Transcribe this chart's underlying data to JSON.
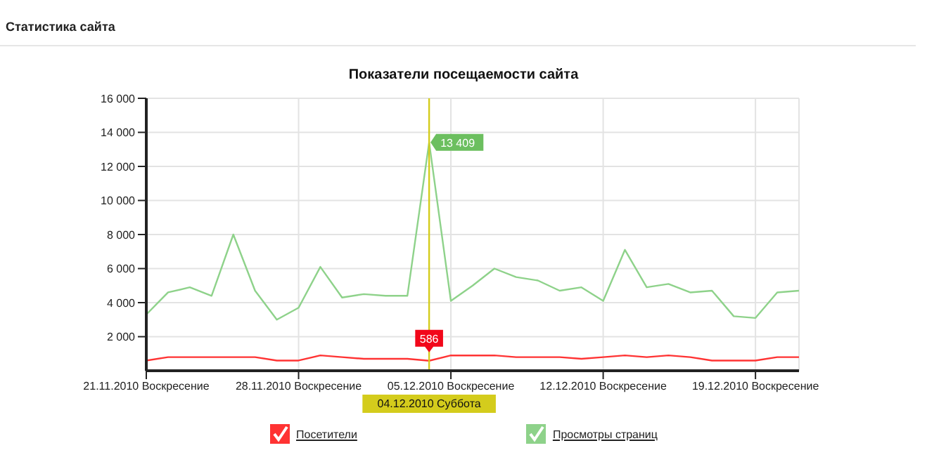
{
  "chart_data": {
    "type": "line",
    "title": "Показатели посещаемости сайта",
    "annotations": [
      "Статистика сайта"
    ],
    "x": [
      "2010-11-21",
      "2010-11-22",
      "2010-11-23",
      "2010-11-24",
      "2010-11-25",
      "2010-11-26",
      "2010-11-27",
      "2010-11-28",
      "2010-11-29",
      "2010-11-30",
      "2010-12-01",
      "2010-12-02",
      "2010-12-03",
      "2010-12-04",
      "2010-12-05",
      "2010-12-06",
      "2010-12-07",
      "2010-12-08",
      "2010-12-09",
      "2010-12-10",
      "2010-12-11",
      "2010-12-12",
      "2010-12-13",
      "2010-12-14",
      "2010-12-15",
      "2010-12-16",
      "2010-12-17",
      "2010-12-18",
      "2010-12-19",
      "2010-12-20",
      "2010-12-21"
    ],
    "series": [
      {
        "name": "Посетители",
        "color": "#ff3333",
        "values": [
          600,
          800,
          800,
          800,
          800,
          800,
          600,
          600,
          900,
          800,
          700,
          700,
          700,
          586,
          900,
          900,
          900,
          800,
          800,
          800,
          700,
          800,
          900,
          800,
          900,
          800,
          600,
          600,
          600,
          800,
          800
        ],
        "value_labels": [
          null,
          null,
          null,
          null,
          null,
          null,
          null,
          null,
          null,
          null,
          null,
          null,
          null,
          "586",
          null,
          null,
          null,
          null,
          null,
          null,
          null,
          null,
          null,
          null,
          null,
          null,
          null,
          null,
          null,
          null,
          null
        ]
      },
      {
        "name": "Просмотры страниц",
        "color": "#8ed28a",
        "values": [
          3300,
          4600,
          4900,
          4400,
          8000,
          4700,
          3000,
          3700,
          6100,
          4300,
          4500,
          4400,
          4400,
          13409,
          4100,
          5000,
          6000,
          5500,
          5300,
          4700,
          4900,
          4100,
          7100,
          4900,
          5100,
          4600,
          4700,
          3200,
          3100,
          4600,
          4700
        ],
        "value_labels": [
          null,
          null,
          null,
          null,
          null,
          null,
          null,
          null,
          null,
          null,
          null,
          null,
          null,
          "13 409",
          null,
          null,
          null,
          null,
          null,
          null,
          null,
          null,
          null,
          null,
          null,
          null,
          null,
          null,
          null,
          null,
          null
        ]
      }
    ],
    "xlim": [
      "2010-11-21",
      "2010-12-21"
    ],
    "xticks": [
      {
        "value": "2010-11-21",
        "label": "21.11.2010 Воскресение"
      },
      {
        "value": "2010-11-28",
        "label": "28.11.2010 Воскресение"
      },
      {
        "value": "2010-12-05",
        "label": "05.12.2010 Воскресение"
      },
      {
        "value": "2010-12-12",
        "label": "12.12.2010 Воскресение"
      },
      {
        "value": "2010-12-19",
        "label": "19.12.2010 Воскресение"
      }
    ],
    "ylim": [
      0,
      16000
    ],
    "yticks": [
      {
        "value": 2000,
        "label": "2 000"
      },
      {
        "value": 4000,
        "label": "4 000"
      },
      {
        "value": 6000,
        "label": "6 000"
      },
      {
        "value": 8000,
        "label": "8 000"
      },
      {
        "value": 10000,
        "label": "10 000"
      },
      {
        "value": 12000,
        "label": "12 000"
      },
      {
        "value": 14000,
        "label": "14 000"
      },
      {
        "value": 16000,
        "label": "16 000"
      }
    ],
    "ref_lines": [
      {
        "axis": "x",
        "value": "2010-12-04",
        "label": "04.12.2010 Суббота",
        "color": "#d4cc1c"
      }
    ],
    "grid": true,
    "legend": "bottom",
    "marker": "none",
    "line_style": "solid"
  }
}
